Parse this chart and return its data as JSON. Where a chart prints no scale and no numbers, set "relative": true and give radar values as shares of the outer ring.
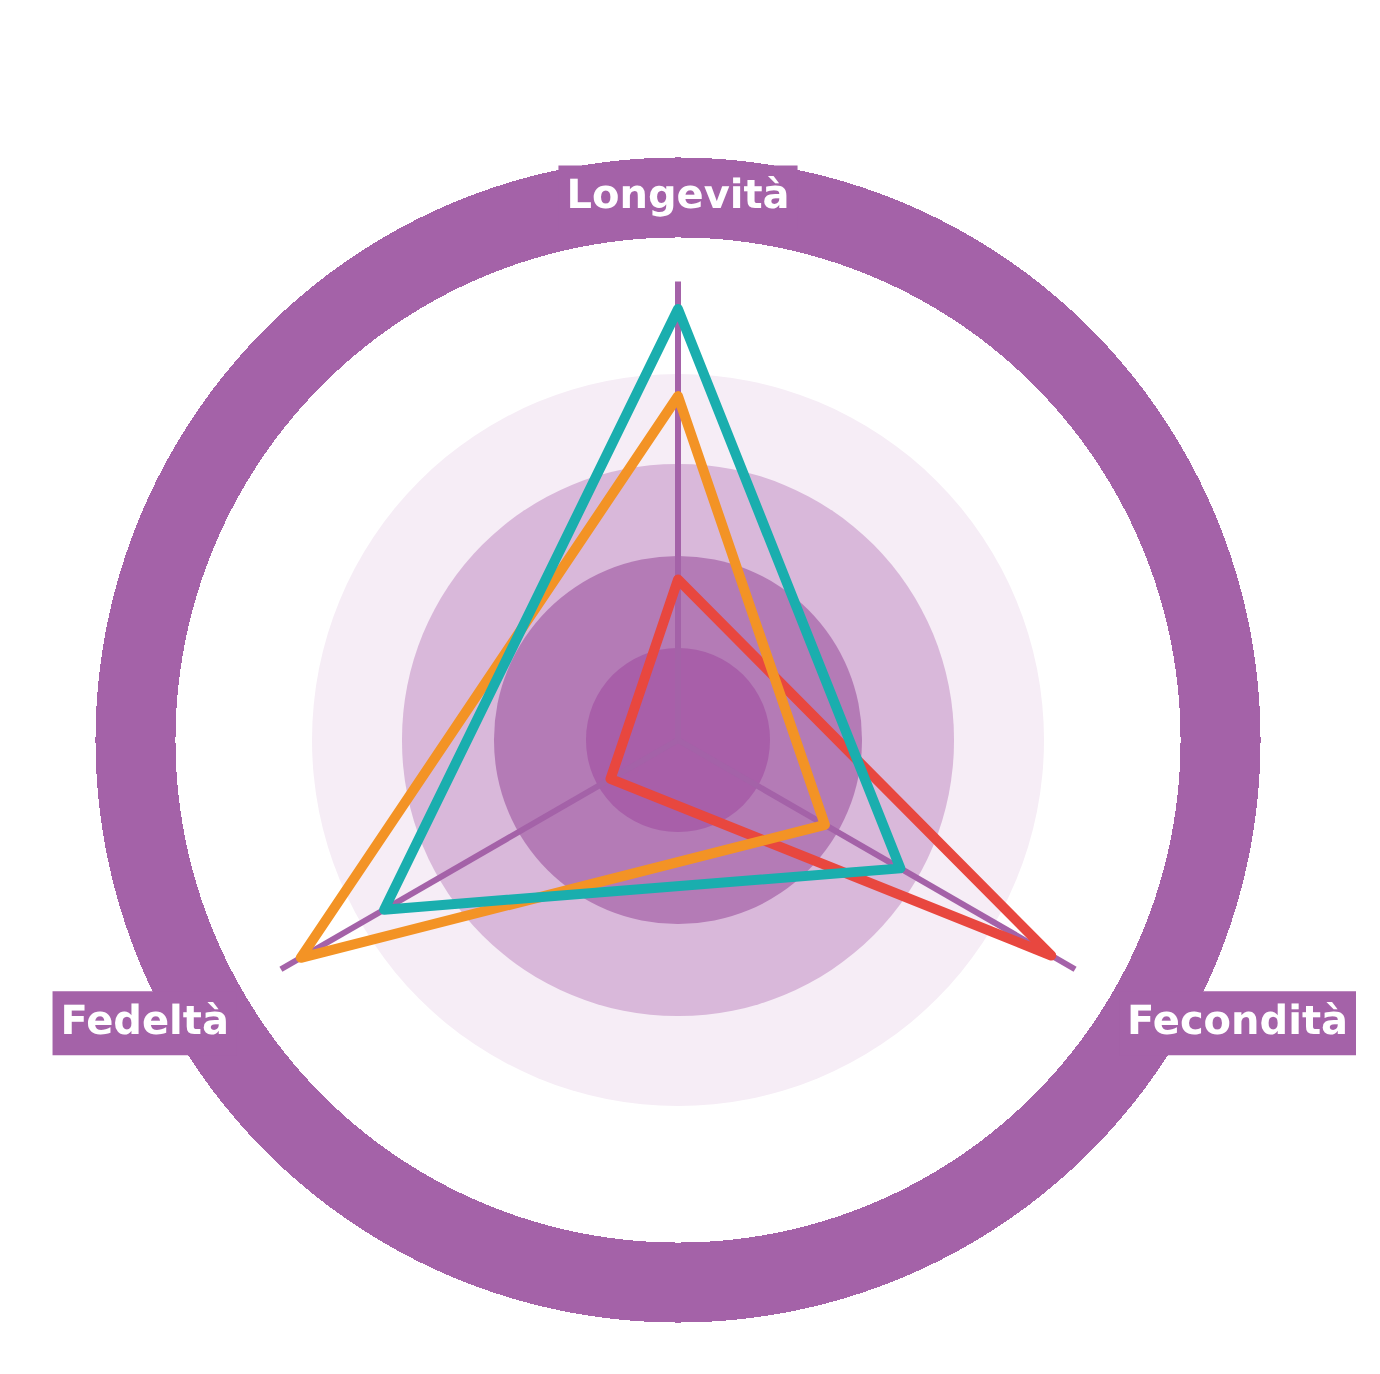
{
  "chart_data": {
    "type": "radar",
    "relative": true,
    "categories": [
      "Longevità",
      "Fecondità",
      "Fedeltà"
    ],
    "series": [
      {
        "color": "#1aaeae",
        "values": [
          0.94,
          0.56,
          0.74
        ]
      },
      {
        "color": "#f39325",
        "values": [
          0.75,
          0.37,
          0.95
        ]
      },
      {
        "color": "#e8473f",
        "values": [
          0.35,
          0.94,
          0.17
        ]
      }
    ]
  }
}
